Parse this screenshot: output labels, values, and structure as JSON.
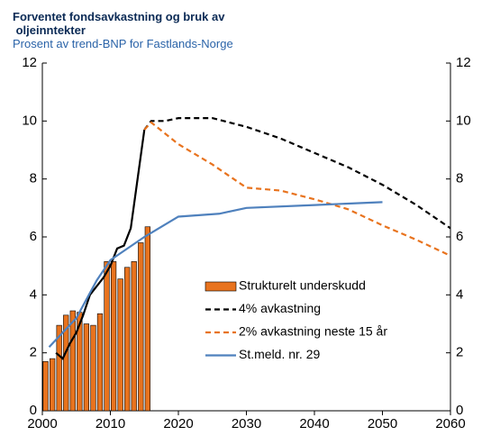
{
  "chart_data": {
    "type": "bar_line",
    "title": "Forventet fondsavkastning og bruk av oljeinntekter",
    "subtitle": "Prosent av trend-BNP for Fastlands-Norge",
    "xlim": [
      2000,
      2060
    ],
    "xticks": [
      2000,
      2010,
      2020,
      2030,
      2040,
      2050,
      2060
    ],
    "ylim": [
      0,
      12
    ],
    "yticks": [
      0,
      2,
      4,
      6,
      8,
      10,
      12
    ],
    "y2lim": [
      0,
      12
    ],
    "y2ticks": [
      0,
      2,
      4,
      6,
      8,
      10,
      12
    ],
    "grid": false,
    "series": [
      {
        "name": "Strukturelt underskudd",
        "type": "bar",
        "color": "#e8731e",
        "x": [
          2000,
          2001,
          2002,
          2003,
          2004,
          2005,
          2006,
          2007,
          2008,
          2009,
          2010,
          2011,
          2012,
          2013,
          2014,
          2015
        ],
        "values": [
          1.7,
          1.8,
          2.95,
          3.3,
          3.45,
          3.4,
          3.0,
          2.95,
          3.35,
          5.15,
          5.15,
          4.55,
          4.95,
          5.15,
          5.8,
          6.35
        ]
      },
      {
        "name": "4% avkastning",
        "type": "line",
        "color": "#000000",
        "dash": true,
        "solid_until_x": 2015,
        "x": [
          2002,
          2003,
          2004,
          2005,
          2006,
          2007,
          2008,
          2009,
          2010,
          2011,
          2012,
          2013,
          2014,
          2015,
          2016,
          2018,
          2020,
          2025,
          2030,
          2035,
          2040,
          2045,
          2050,
          2055,
          2060
        ],
        "values": [
          2.0,
          1.8,
          2.3,
          2.7,
          3.3,
          4.0,
          4.3,
          4.6,
          5.0,
          5.6,
          5.7,
          6.3,
          8.0,
          9.7,
          10.0,
          10.0,
          10.1,
          10.1,
          9.8,
          9.4,
          8.9,
          8.4,
          7.8,
          7.1,
          6.3
        ]
      },
      {
        "name": "2% avkastning neste 15 år",
        "type": "line",
        "color": "#e8731e",
        "dash": true,
        "x": [
          2015,
          2016,
          2020,
          2025,
          2030,
          2035,
          2040,
          2045,
          2050,
          2055,
          2060
        ],
        "values": [
          9.7,
          9.95,
          9.2,
          8.5,
          7.7,
          7.6,
          7.3,
          6.95,
          6.4,
          5.9,
          5.35
        ]
      },
      {
        "name": "St.meld. nr. 29",
        "type": "line",
        "color": "#4f81bd",
        "dash": false,
        "x": [
          2001,
          2005,
          2008,
          2010,
          2015,
          2020,
          2026,
          2030,
          2040,
          2050
        ],
        "values": [
          2.2,
          3.2,
          4.5,
          5.2,
          6.0,
          6.7,
          6.8,
          7.0,
          7.1,
          7.2
        ]
      }
    ]
  }
}
